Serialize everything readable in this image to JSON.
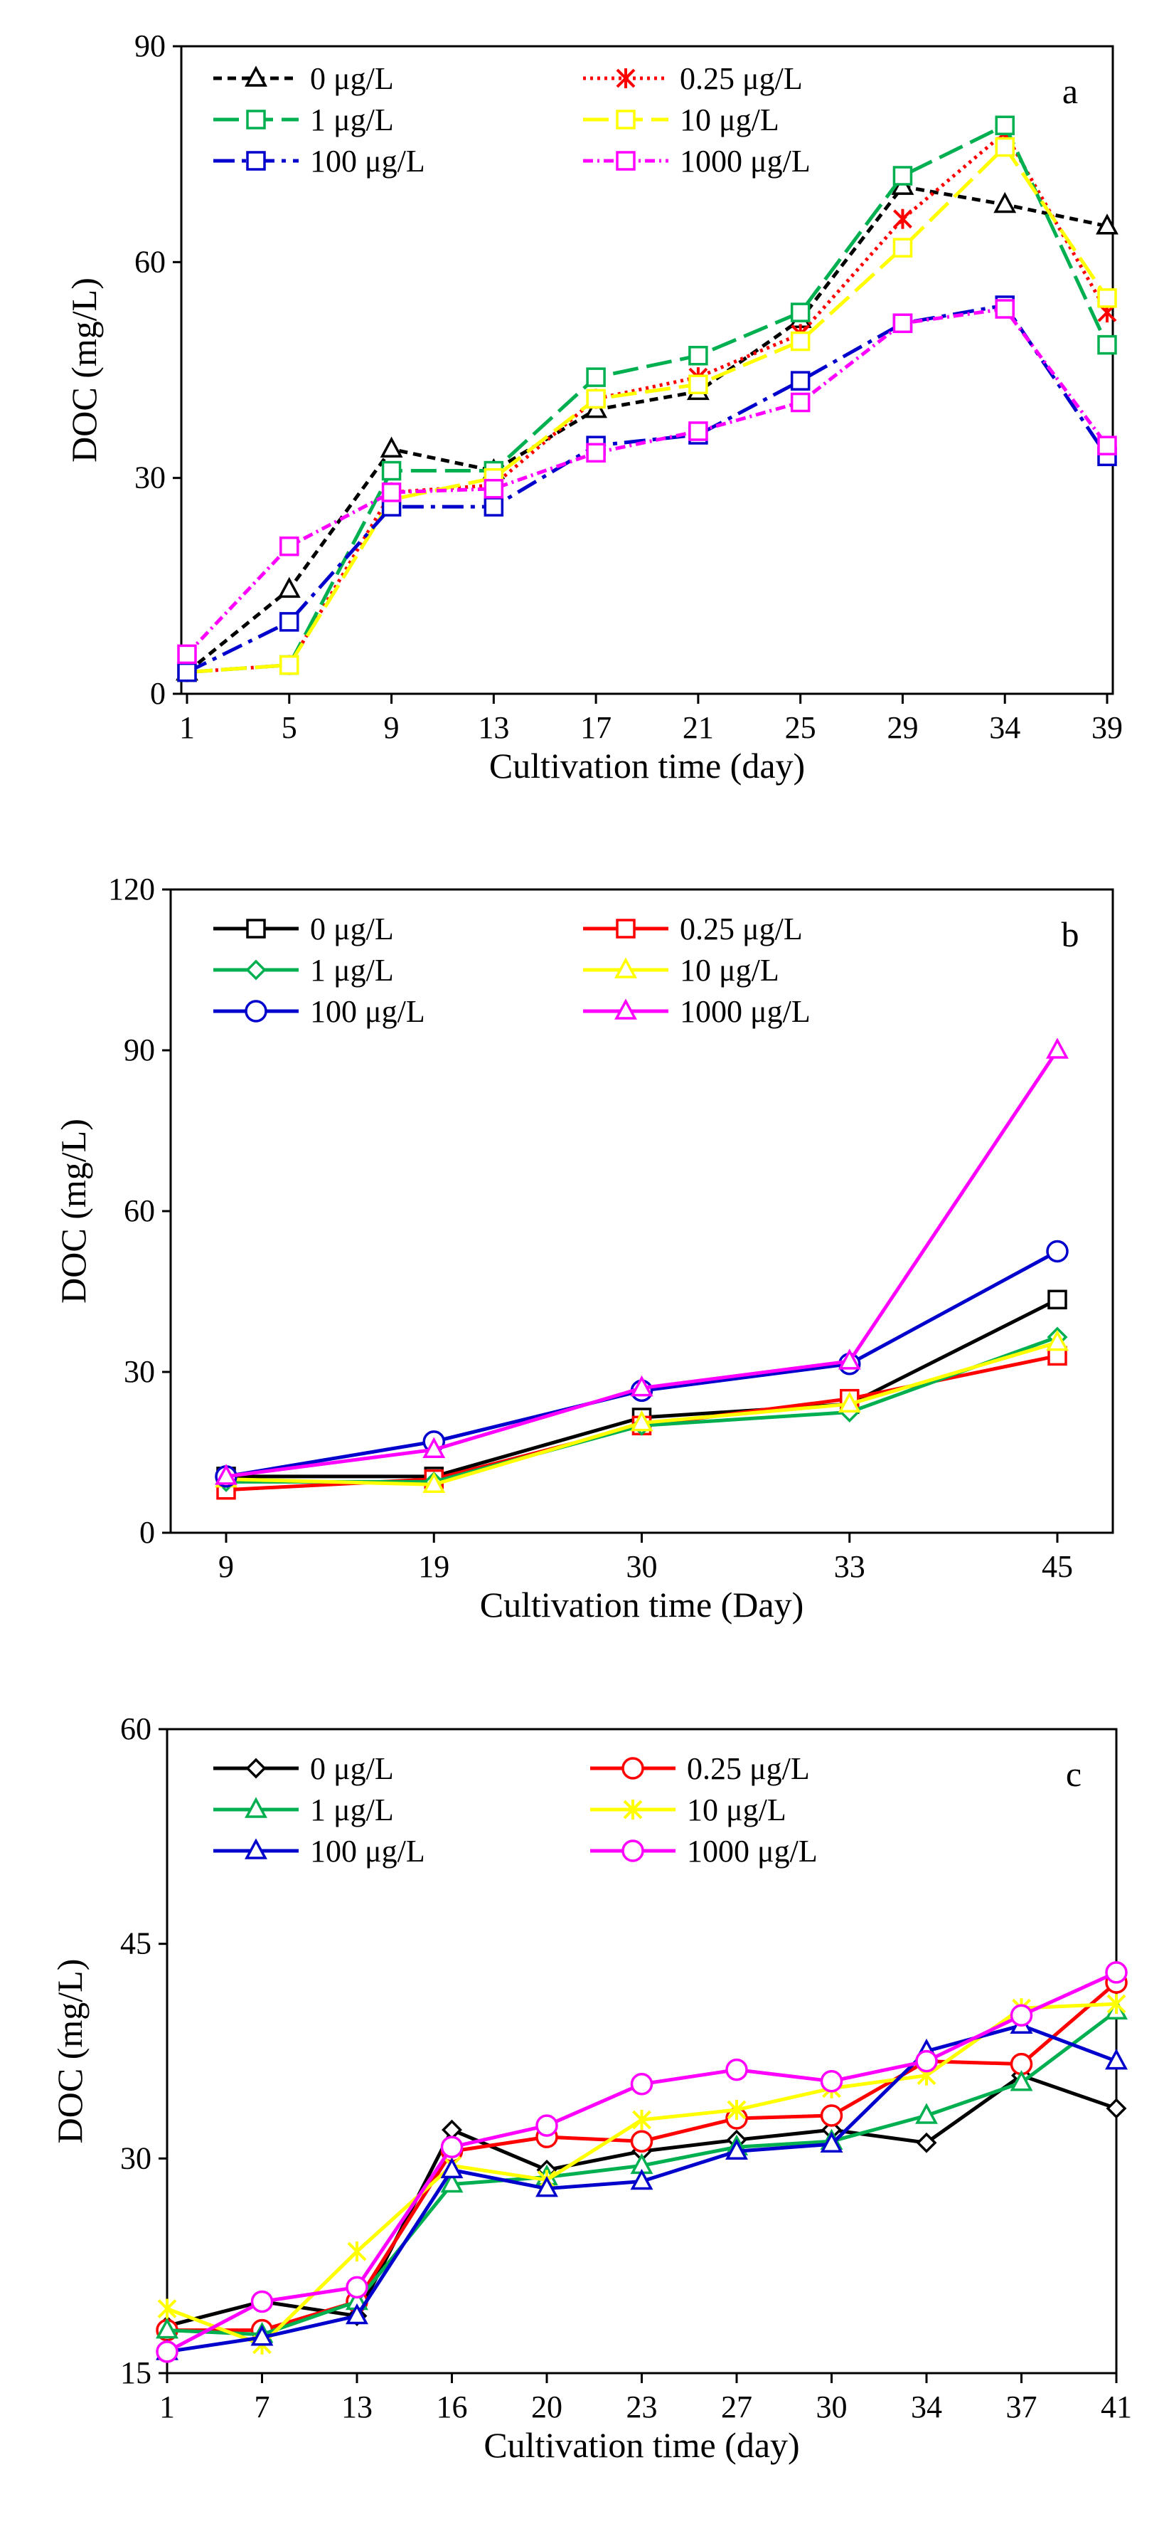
{
  "chart_data": [
    {
      "type": "line",
      "panel_label": "a",
      "xlabel": "Cultivation time (day)",
      "ylabel": "DOC (mg/L)",
      "categories": [
        "1",
        "5",
        "9",
        "13",
        "17",
        "21",
        "25",
        "29",
        "34",
        "39"
      ],
      "ylim": [
        0,
        90
      ],
      "yticks": [
        "0",
        "30",
        "60",
        "90"
      ],
      "grid": false,
      "legend_position": "top-left",
      "series": [
        {
          "name": "0 μg/L",
          "color": "#000000",
          "marker": "triangle",
          "dash": "12,8",
          "values": [
            3,
            14.5,
            34,
            31,
            39.5,
            42,
            52,
            70.5,
            68,
            65
          ]
        },
        {
          "name": "0.25 μg/L",
          "color": "#ff0000",
          "marker": "asterisk",
          "dash": "4,6",
          "values": [
            3,
            4,
            28,
            29,
            41,
            44,
            50,
            66,
            78,
            53
          ]
        },
        {
          "name": "1  μg/L",
          "color": "#00b050",
          "marker": "square",
          "dash": "36,12",
          "values": [
            3,
            4,
            31,
            31,
            44,
            47,
            53,
            72,
            79,
            48.5
          ]
        },
        {
          "name": "10  μg/L",
          "color": "#ffff00",
          "marker": "square",
          "dash": "36,12",
          "values": [
            3,
            4,
            27,
            30,
            41,
            43,
            49,
            62,
            76,
            55
          ]
        },
        {
          "name": "100  μg/L",
          "color": "#0000cc",
          "marker": "square",
          "dash": "30,10,6,10",
          "values": [
            3,
            10,
            26,
            26,
            34.5,
            36,
            43.5,
            51.5,
            54,
            33
          ]
        },
        {
          "name": "1000  μg/L",
          "color": "#ff00ff",
          "marker": "square",
          "dash": "14,6,3,6",
          "values": [
            5.5,
            20.5,
            28,
            28.5,
            33.5,
            36.5,
            40.5,
            51.5,
            53.5,
            34.5
          ]
        }
      ]
    },
    {
      "type": "line",
      "panel_label": "b",
      "xlabel": "Cultivation time (Day)",
      "ylabel": "DOC (mg/L)",
      "categories": [
        "9",
        "19",
        "30",
        "33",
        "45"
      ],
      "ylim": [
        0,
        120
      ],
      "yticks": [
        "0",
        "30",
        "60",
        "90",
        "120"
      ],
      "grid": false,
      "legend_position": "top-left",
      "series": [
        {
          "name": "0 μg/L",
          "color": "#000000",
          "marker": "square",
          "values": [
            10.5,
            10.5,
            21.5,
            24,
            43.5
          ]
        },
        {
          "name": "0.25 μg/L",
          "color": "#ff0000",
          "marker": "square",
          "values": [
            8,
            10,
            20,
            25,
            33
          ]
        },
        {
          "name": "1 μg/L",
          "color": "#00b050",
          "marker": "diamond",
          "values": [
            9.5,
            9.5,
            20,
            22.5,
            36.5
          ]
        },
        {
          "name": "10 μg/L",
          "color": "#ffff00",
          "marker": "triangle",
          "values": [
            10,
            9,
            20.5,
            24,
            35.5
          ]
        },
        {
          "name": "100 μg/L",
          "color": "#0000cc",
          "marker": "circle",
          "values": [
            10.5,
            17,
            26.5,
            31.5,
            52.5
          ]
        },
        {
          "name": "1000 μg/L",
          "color": "#ff00ff",
          "marker": "triangle",
          "values": [
            10.5,
            15.5,
            27,
            32,
            90
          ]
        }
      ]
    },
    {
      "type": "line",
      "panel_label": "c",
      "xlabel": "Cultivation time (day)",
      "ylabel": "DOC (mg/L)",
      "categories": [
        "1",
        "7",
        "13",
        "16",
        "20",
        "23",
        "27",
        "30",
        "34",
        "37",
        "41"
      ],
      "ylim": [
        15,
        60
      ],
      "yticks": [
        "15",
        "30",
        "45",
        "60"
      ],
      "grid": false,
      "legend_position": "top-left",
      "series": [
        {
          "name": "0 μg/L",
          "color": "#000000",
          "marker": "diamond",
          "values": [
            18.3,
            20,
            19,
            32,
            29.2,
            30.5,
            31.3,
            32,
            31.1,
            35.8,
            33.5
          ]
        },
        {
          "name": "0.25 μg/L",
          "color": "#ff0000",
          "marker": "circle",
          "values": [
            18,
            18,
            20,
            30.5,
            31.5,
            31.2,
            32.8,
            33,
            36.8,
            36.6,
            42.3
          ]
        },
        {
          "name": "1 μg/L",
          "color": "#00b050",
          "marker": "triangle",
          "values": [
            18,
            17.7,
            20,
            28.2,
            28.7,
            29.5,
            30.8,
            31.2,
            33,
            35.3,
            40.3
          ]
        },
        {
          "name": "10 μg/L",
          "color": "#ffff00",
          "marker": "asterisk",
          "values": [
            19.5,
            17,
            23.5,
            29.5,
            28.5,
            32.7,
            33.4,
            34.9,
            35.8,
            40.5,
            40.8
          ]
        },
        {
          "name": "100 μg/L",
          "color": "#0000cc",
          "marker": "triangle",
          "values": [
            16.5,
            17.5,
            19,
            29.2,
            27.9,
            28.4,
            30.5,
            31,
            37.5,
            39.3,
            36.8
          ]
        },
        {
          "name": "1000 μg/L",
          "color": "#ff00ff",
          "marker": "circle",
          "values": [
            16.5,
            20,
            21,
            30.8,
            32.3,
            35.2,
            36.2,
            35.4,
            36.8,
            40,
            43
          ]
        }
      ]
    }
  ]
}
